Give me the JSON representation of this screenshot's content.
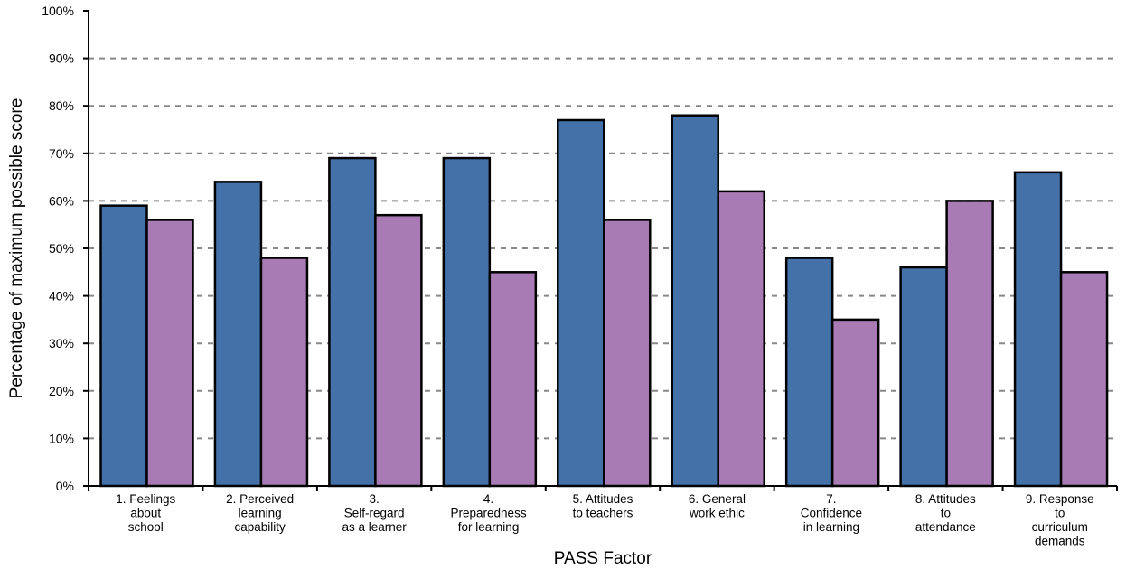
{
  "chart_data": {
    "type": "bar",
    "title": "",
    "xlabel": "PASS Factor",
    "ylabel": "Percentage of maximum possible score",
    "ylim": [
      0,
      100
    ],
    "yticks": [
      "0%",
      "10%",
      "20%",
      "30%",
      "40%",
      "50%",
      "60%",
      "70%",
      "80%",
      "90%",
      "100%"
    ],
    "grid": "horizontal dashed",
    "legend": "none",
    "categories": [
      [
        "1. Feelings",
        "about",
        "school"
      ],
      [
        "2. Perceived",
        "learning",
        "capability"
      ],
      [
        "3.",
        "Self-regard",
        "as a learner"
      ],
      [
        "4.",
        "Preparedness",
        "for learning"
      ],
      [
        "5. Attitudes",
        "to teachers"
      ],
      [
        "6. General",
        "work ethic"
      ],
      [
        "7.",
        "Confidence",
        "in learning"
      ],
      [
        "8. Attitudes",
        "to",
        "attendance"
      ],
      [
        "9. Response",
        "to",
        "curriculum",
        "demands"
      ]
    ],
    "series": [
      {
        "color": "#4472a8",
        "values": [
          59,
          64,
          69,
          69,
          77,
          78,
          48,
          46,
          66
        ]
      },
      {
        "color": "#a97bb4",
        "values": [
          56,
          48,
          57,
          45,
          56,
          62,
          35,
          60,
          45
        ]
      }
    ]
  }
}
